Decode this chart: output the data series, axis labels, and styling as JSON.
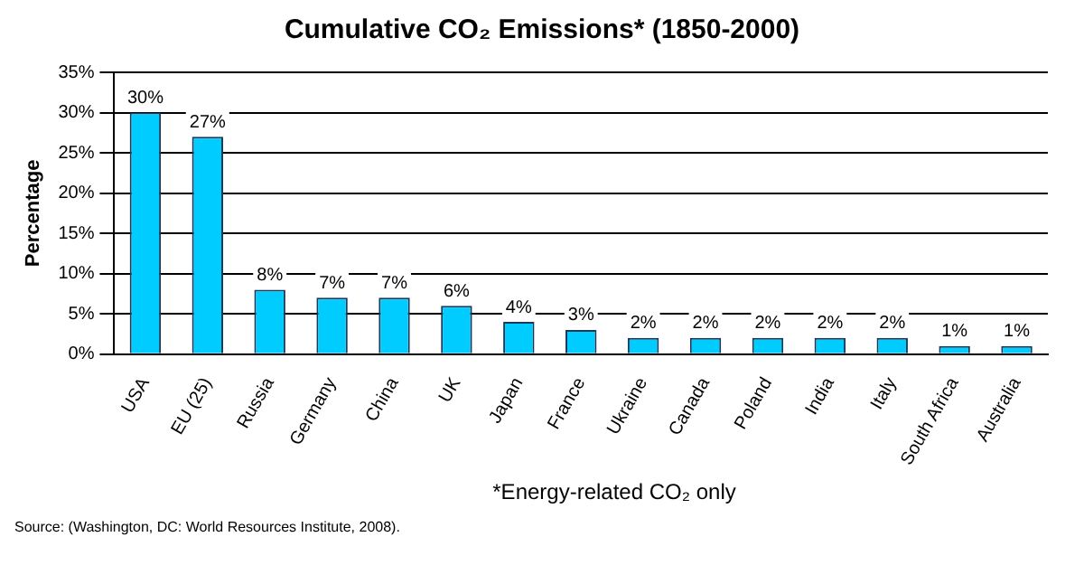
{
  "chart_data": {
    "type": "bar",
    "title": "Cumulative CO₂ Emissions* (1850-2000)",
    "ylabel": "Percentage",
    "categories": [
      "USA",
      "EU (25)",
      "Russia",
      "Germany",
      "China",
      "UK",
      "Japan",
      "France",
      "Ukraine",
      "Canada",
      "Poland",
      "India",
      "Italy",
      "South Africa",
      "Australia"
    ],
    "values": [
      30,
      27,
      8,
      7,
      7,
      6,
      4,
      3,
      2,
      2,
      2,
      2,
      2,
      1,
      1
    ],
    "value_labels": [
      "30%",
      "27%",
      "8%",
      "7%",
      "7%",
      "6%",
      "4%",
      "3%",
      "2%",
      "2%",
      "2%",
      "2%",
      "2%",
      "1%",
      "1%"
    ],
    "color": "#00ccff",
    "ylim": [
      0,
      35
    ],
    "yticks": [
      {
        "value": 0,
        "label": "0%"
      },
      {
        "value": 5,
        "label": "5%"
      },
      {
        "value": 10,
        "label": "10%"
      },
      {
        "value": 15,
        "label": "15%"
      },
      {
        "value": 20,
        "label": "20%"
      },
      {
        "value": 25,
        "label": "25%"
      },
      {
        "value": 30,
        "label": "30%"
      },
      {
        "value": 35,
        "label": "35%"
      }
    ],
    "grid": "y",
    "annotations": [
      "*Energy-related CO₂ only",
      "Source: (Washington, DC: World Resources Institute, 2008)."
    ]
  }
}
